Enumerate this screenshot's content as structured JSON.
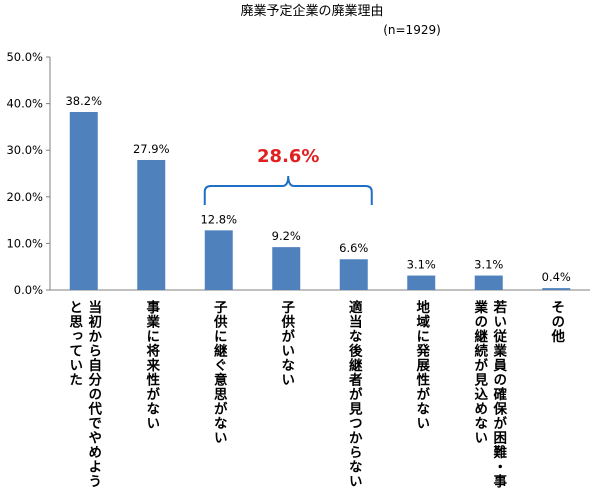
{
  "chart_data": {
    "type": "bar",
    "title": "廃業予定企業の廃業理由",
    "subtitle": "(n=1929)",
    "categories": [
      [
        "当初から自分の代でやめよう",
        "と思っていた"
      ],
      [
        "事業に将来性がない"
      ],
      [
        "子供に継ぐ意思がない"
      ],
      [
        "子供がいない"
      ],
      [
        "適当な後継者が見つからない"
      ],
      [
        "地域に発展性がない"
      ],
      [
        "若い従業員の確保が困難・事",
        "業の継続が見込めない"
      ],
      [
        "その他"
      ]
    ],
    "values": [
      38.2,
      27.9,
      12.8,
      9.2,
      6.6,
      3.1,
      3.1,
      0.4
    ],
    "value_labels": [
      "38.2%",
      "27.9%",
      "12.8%",
      "9.2%",
      "6.6%",
      "3.1%",
      "3.1%",
      "0.4%"
    ],
    "yticks": [
      "0.0%",
      "10.0%",
      "20.0%",
      "30.0%",
      "40.0%",
      "50.0%"
    ],
    "ylim": [
      0,
      50
    ],
    "grid": false,
    "bar_color": "#4f81bd",
    "annotation": {
      "text": "28.6%",
      "color": "#e02020",
      "brace_color": "#1f6fc6",
      "spans_categories": [
        2,
        4
      ]
    }
  }
}
